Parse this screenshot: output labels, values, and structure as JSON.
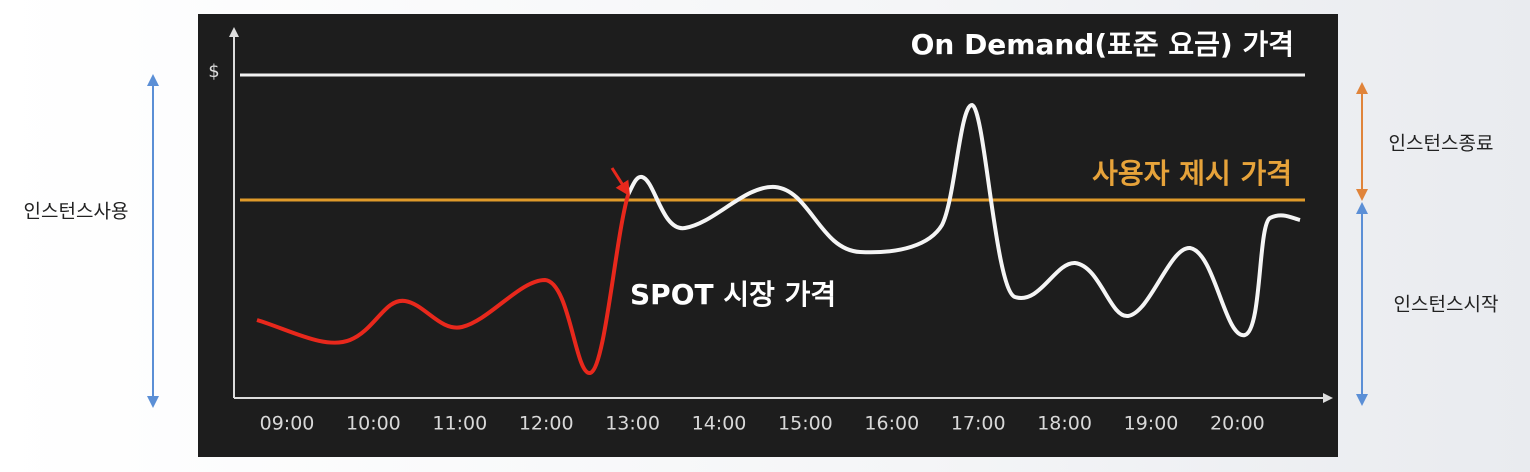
{
  "y_axis_label": "$",
  "on_demand_label": "On Demand(표준 요금) 가격",
  "bid_price_label": "사용자 제시 가격",
  "spot_price_label": "SPOT 시장 가격",
  "x_labels": [
    "09:00",
    "10:00",
    "11:00",
    "12:00",
    "13:00",
    "14:00",
    "15:00",
    "16:00",
    "17:00",
    "18:00",
    "19:00",
    "20:00"
  ],
  "left_annotation": "인스턴스사용",
  "right_annotations": [
    "인스턴스종료",
    "인스턴스시작"
  ]
}
